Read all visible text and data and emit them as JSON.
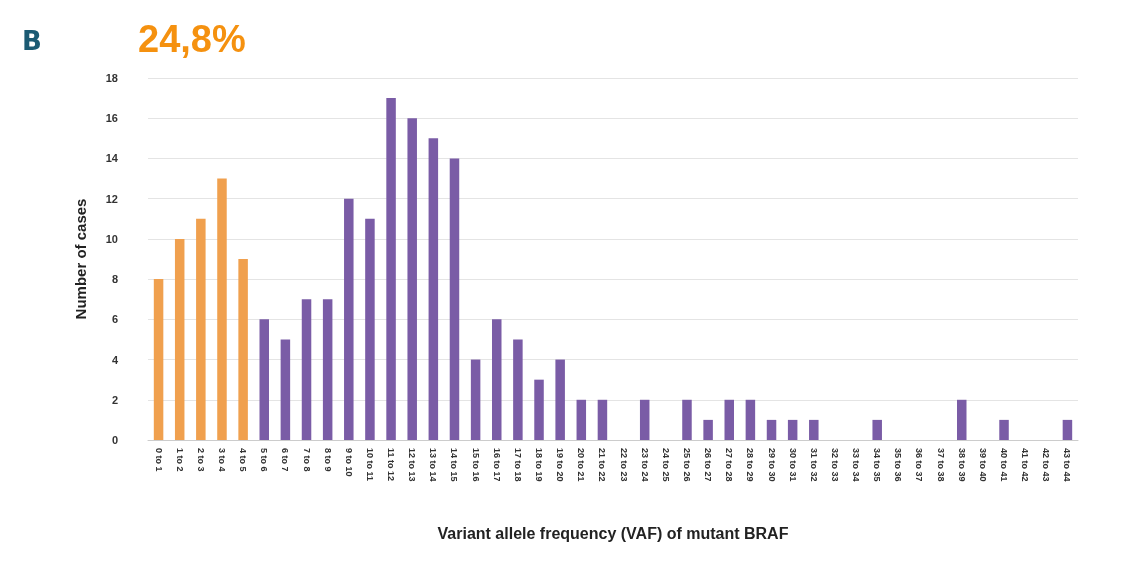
{
  "chart_data": {
    "type": "bar",
    "xlabel": "Variant allele frequency (VAF) of mutant BRAF",
    "ylabel": "Number of cases",
    "annotations": [
      "B",
      "24,8%"
    ],
    "categories": [
      "0 to 1",
      "1 to 2",
      "2 to 3",
      "3 to 4",
      "4 to 5",
      "5 to 6",
      "6 to 7",
      "7 to 8",
      "8 to 9",
      "9 to 10",
      "10 to 11",
      "11 to 12",
      "12 to 13",
      "13 to 14",
      "14 to 15",
      "15 to 16",
      "16 to 17",
      "17 to 18",
      "18 to 19",
      "19 to 20",
      "20 to 21",
      "21 to 22",
      "22 to 23",
      "23 to 24",
      "24 to 25",
      "25 to 26",
      "26 to 27",
      "27 to 28",
      "28 to 29",
      "29 to 30",
      "30 to 31",
      "31 to 32",
      "32 to 33",
      "33 to 34",
      "34 to 35",
      "35 to 36",
      "36 to 37",
      "37 to 38",
      "38 to 39",
      "39 to 40",
      "40 to 41",
      "41 to 42",
      "42 to 43",
      "43 to 44"
    ],
    "values": [
      8,
      10,
      11,
      13,
      9,
      6,
      5,
      7,
      7,
      12,
      11,
      17,
      16,
      15,
      14,
      4,
      6,
      5,
      3,
      4,
      2,
      2,
      0,
      2,
      0,
      2,
      1,
      2,
      2,
      1,
      1,
      1,
      0,
      0,
      1,
      0,
      0,
      0,
      2,
      0,
      1,
      0,
      0,
      1
    ],
    "colors": [
      "#f0a04e",
      "#f0a04e",
      "#f0a04e",
      "#f0a04e",
      "#f0a04e",
      "#7a5ca6",
      "#7a5ca6",
      "#7a5ca6",
      "#7a5ca6",
      "#7a5ca6",
      "#7a5ca6",
      "#7a5ca6",
      "#7a5ca6",
      "#7a5ca6",
      "#7a5ca6",
      "#7a5ca6",
      "#7a5ca6",
      "#7a5ca6",
      "#7a5ca6",
      "#7a5ca6",
      "#7a5ca6",
      "#7a5ca6",
      "#7a5ca6",
      "#7a5ca6",
      "#7a5ca6",
      "#7a5ca6",
      "#7a5ca6",
      "#7a5ca6",
      "#7a5ca6",
      "#7a5ca6",
      "#7a5ca6",
      "#7a5ca6",
      "#7a5ca6",
      "#7a5ca6",
      "#7a5ca6",
      "#7a5ca6",
      "#7a5ca6",
      "#7a5ca6",
      "#7a5ca6",
      "#7a5ca6",
      "#7a5ca6",
      "#7a5ca6",
      "#7a5ca6",
      "#7a5ca6"
    ],
    "ylim": [
      0,
      18
    ],
    "yticks": [
      0,
      2,
      4,
      6,
      8,
      10,
      12,
      14,
      16,
      18
    ],
    "grid": "y"
  }
}
